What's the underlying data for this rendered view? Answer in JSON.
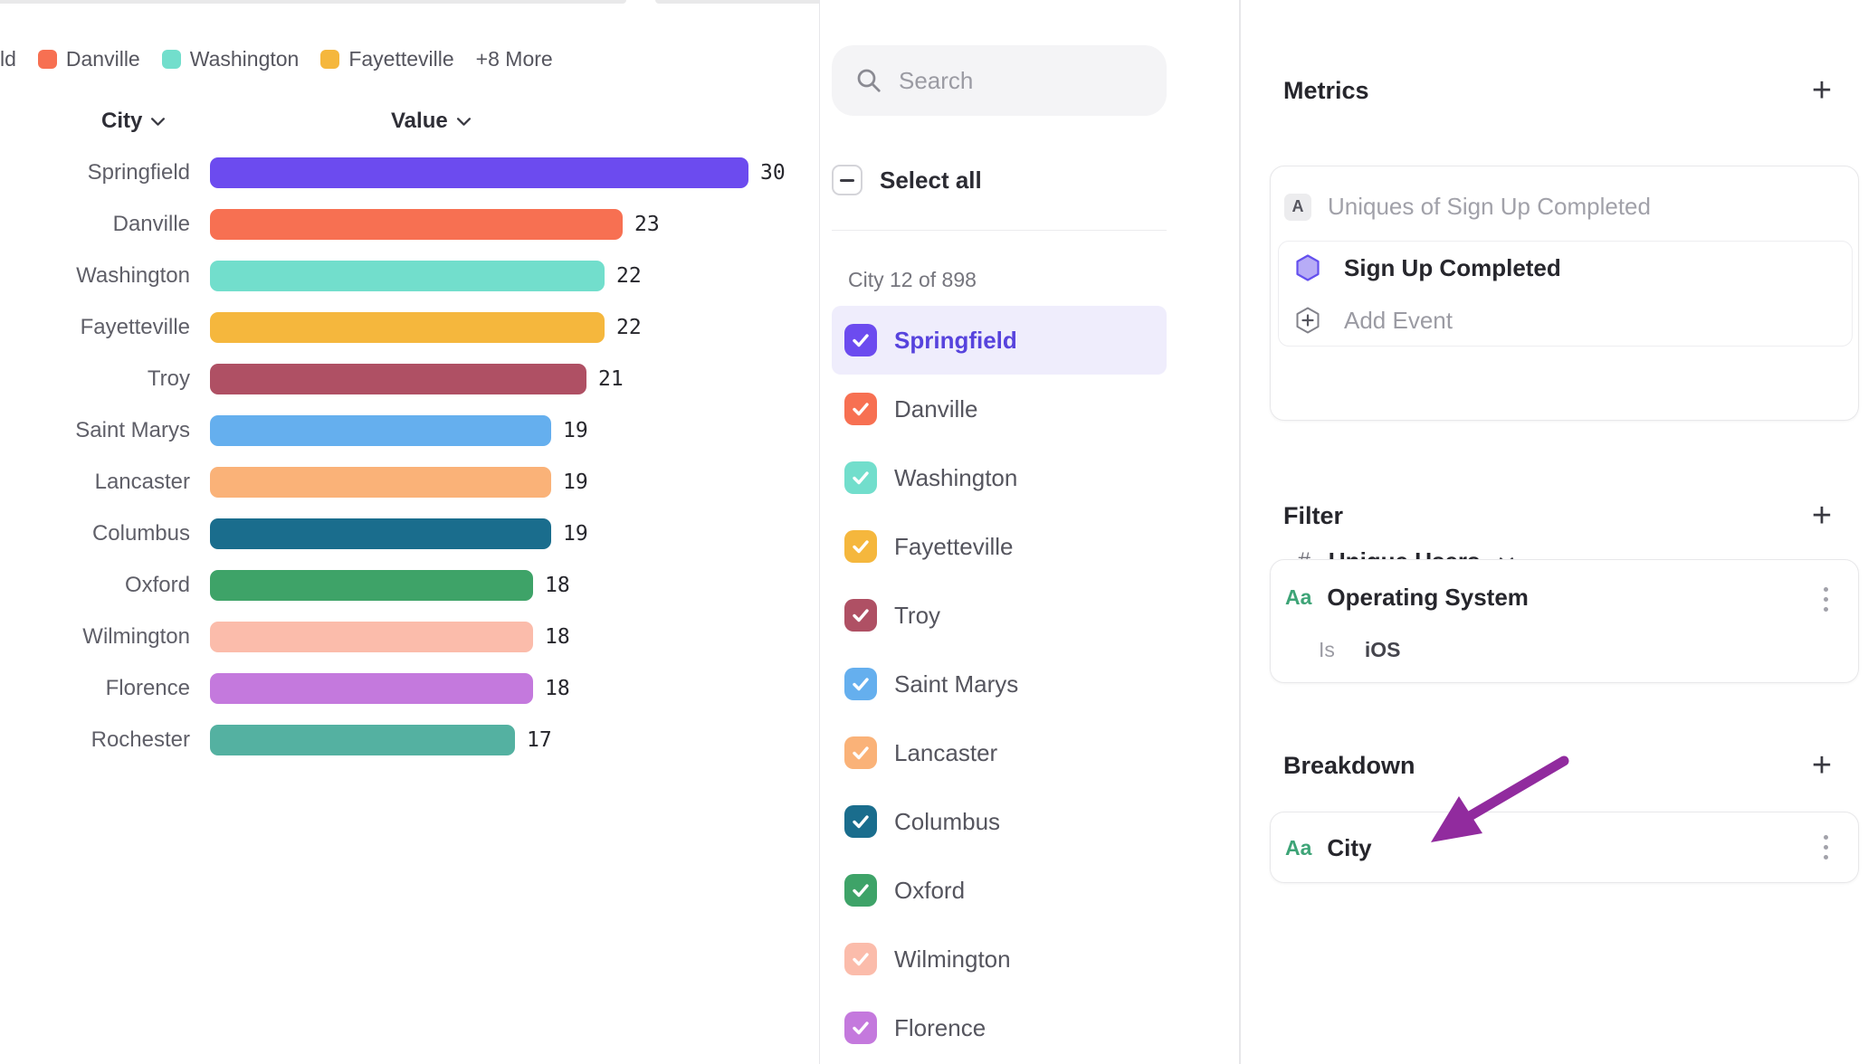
{
  "colors": {
    "panel_border": "#e7e7ea",
    "highlight_bg": "#efedfc",
    "highlight_text": "#5743dd",
    "arrow": "#912b9e",
    "aa_green": "#3ea477",
    "hexagon_fill": "#b7acf6",
    "hexagon_stroke": "#6450ee"
  },
  "chart_data": {
    "type": "bar",
    "orientation": "horizontal",
    "title": "",
    "columns": {
      "category": "City",
      "value": "Value"
    },
    "categories": [
      "Springfield",
      "Danville",
      "Washington",
      "Fayetteville",
      "Troy",
      "Saint Marys",
      "Lancaster",
      "Columbus",
      "Oxford",
      "Wilmington",
      "Florence",
      "Rochester"
    ],
    "values": [
      30,
      23,
      22,
      22,
      21,
      19,
      19,
      19,
      18,
      18,
      18,
      17
    ],
    "bar_colors": [
      "#6c4bef",
      "#f77052",
      "#72decc",
      "#f5b73d",
      "#af5064",
      "#65afee",
      "#fab278",
      "#1a6d8d",
      "#3ea368",
      "#fbbcab",
      "#c479dd",
      "#54b1a1"
    ],
    "xlim": [
      0,
      30
    ],
    "grid": false,
    "legend": {
      "position": "top",
      "cut_fragment": "ld",
      "items": [
        {
          "label": "Danville",
          "color": "#f77052"
        },
        {
          "label": "Washington",
          "color": "#72decc"
        },
        {
          "label": "Fayetteville",
          "color": "#f5b73d"
        }
      ],
      "more_label": "+8 More"
    }
  },
  "selector": {
    "search_placeholder": "Search",
    "select_all_label": "Select all",
    "count_label": "City 12 of 898",
    "items": [
      {
        "label": "Springfield",
        "color": "#6c4bef",
        "checked": true,
        "highlighted": true
      },
      {
        "label": "Danville",
        "color": "#f77052",
        "checked": true,
        "highlighted": false
      },
      {
        "label": "Washington",
        "color": "#72decc",
        "checked": true,
        "highlighted": false
      },
      {
        "label": "Fayetteville",
        "color": "#f5b73d",
        "checked": true,
        "highlighted": false
      },
      {
        "label": "Troy",
        "color": "#af5064",
        "checked": true,
        "highlighted": false
      },
      {
        "label": "Saint Marys",
        "color": "#65afee",
        "checked": true,
        "highlighted": false
      },
      {
        "label": "Lancaster",
        "color": "#fab278",
        "checked": true,
        "highlighted": false
      },
      {
        "label": "Columbus",
        "color": "#1a6d8d",
        "checked": true,
        "highlighted": false
      },
      {
        "label": "Oxford",
        "color": "#3ea368",
        "checked": true,
        "highlighted": false
      },
      {
        "label": "Wilmington",
        "color": "#fbbcab",
        "checked": true,
        "highlighted": false
      },
      {
        "label": "Florence",
        "color": "#c479dd",
        "checked": true,
        "highlighted": false
      }
    ]
  },
  "inspector": {
    "metrics": {
      "title": "Metrics",
      "add_label": "+",
      "badge": "A",
      "summary": "Uniques of Sign Up Completed",
      "event_name": "Sign Up Completed",
      "add_event_label": "Add Event",
      "aggregation_symbol": "#",
      "aggregation_label": "Unique Users"
    },
    "filter": {
      "title": "Filter",
      "add_label": "+",
      "type_glyph": "Aa",
      "property": "Operating System",
      "operator": "Is",
      "value": "iOS"
    },
    "breakdown": {
      "title": "Breakdown",
      "add_label": "+",
      "type_glyph": "Aa",
      "property": "City"
    }
  }
}
